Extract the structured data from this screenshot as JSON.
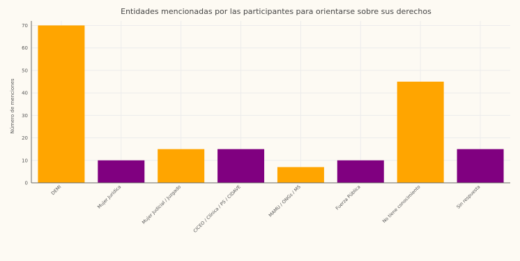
{
  "chart_data": {
    "type": "bar",
    "title": "Entidades mencionadas por las participantes para orientarse sobre sus derechos",
    "ylabel": "Número de menciones",
    "xlabel": "",
    "ylim": [
      0,
      72
    ],
    "yticks": [
      0,
      10,
      20,
      30,
      40,
      50,
      60,
      70
    ],
    "grid": true,
    "categories": [
      "DEMI",
      "Mujer Juridica",
      "Mujer Judicial / Juzgado",
      "CICEO / Clínica / PS / CIDAVE",
      "MAMU / ONGs / MS",
      "Fuerza Pública",
      "No tiene conocimiento",
      "Sin respuesta"
    ],
    "values": [
      70,
      10,
      15,
      15,
      7,
      10,
      45,
      15
    ],
    "colors": [
      "#FFA500",
      "#800080",
      "#FFA500",
      "#800080",
      "#FFA500",
      "#800080",
      "#FFA500",
      "#800080"
    ]
  }
}
